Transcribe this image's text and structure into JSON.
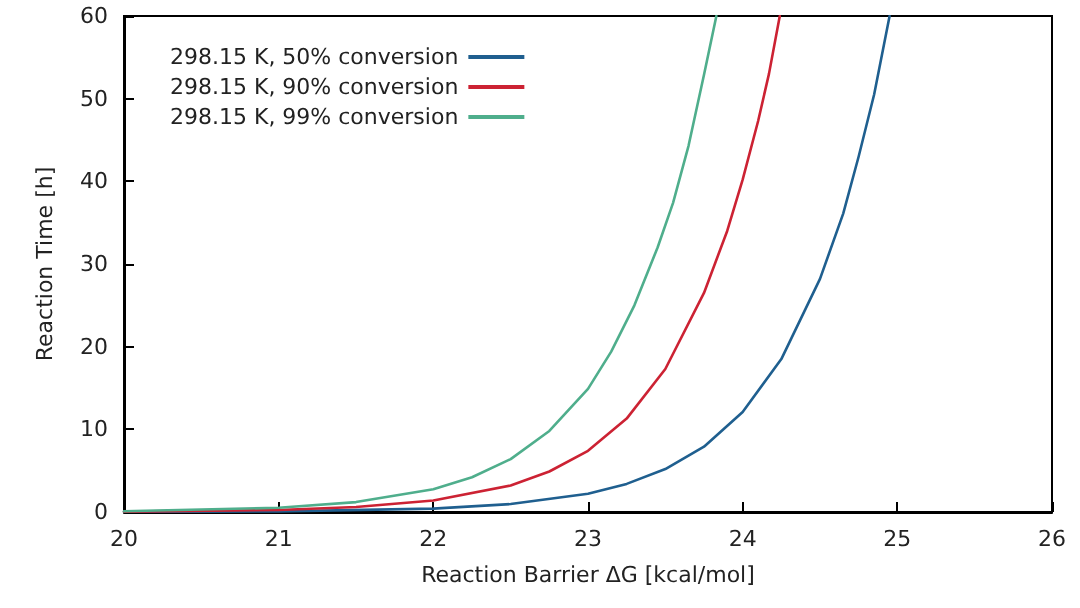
{
  "chart_data": {
    "type": "line",
    "xlabel": "Reaction Barrier ΔG [kcal/mol]",
    "ylabel": "Reaction Time [h]",
    "xlim": [
      20,
      26
    ],
    "xticks": [
      20,
      21,
      22,
      23,
      24,
      25,
      26
    ],
    "ylim": [
      0,
      60
    ],
    "yticks": [
      0,
      10,
      20,
      30,
      40,
      50,
      60
    ],
    "grid": false,
    "legend": "top left",
    "marker": "none",
    "line_style": "solid",
    "series": [
      {
        "name": "298.15 K, 50% conversion",
        "color": "#1f5f8f",
        "x": [
          20,
          21,
          22,
          22.5,
          23,
          23.25,
          23.5,
          23.75,
          24,
          24.25,
          24.5,
          24.65,
          24.75,
          24.85,
          24.95
        ],
        "values": [
          0.01,
          0.08,
          0.41,
          0.96,
          2.2,
          3.4,
          5.2,
          7.9,
          12.1,
          18.5,
          28.2,
          36.1,
          43,
          50.5,
          60
        ]
      },
      {
        "name": "298.15 K, 90% conversion",
        "color": "#cc2233",
        "x": [
          20,
          21,
          21.5,
          22,
          22.5,
          22.75,
          23,
          23.25,
          23.5,
          23.75,
          23.9,
          24,
          24.1,
          24.17,
          24.24
        ],
        "values": [
          0.05,
          0.25,
          0.6,
          1.4,
          3.2,
          4.9,
          7.4,
          11.3,
          17.3,
          26.5,
          34,
          40.2,
          47.3,
          53,
          60
        ]
      },
      {
        "name": "298.15 K, 99% conversion",
        "color": "#4fae8c",
        "x": [
          20,
          21,
          21.5,
          22,
          22.25,
          22.5,
          22.75,
          23,
          23.15,
          23.3,
          23.45,
          23.55,
          23.65,
          23.75,
          23.83
        ],
        "values": [
          0.09,
          0.51,
          1.2,
          2.75,
          4.2,
          6.4,
          9.8,
          14.9,
          19.4,
          25,
          32,
          37.4,
          44.3,
          52.9,
          60
        ]
      }
    ]
  }
}
